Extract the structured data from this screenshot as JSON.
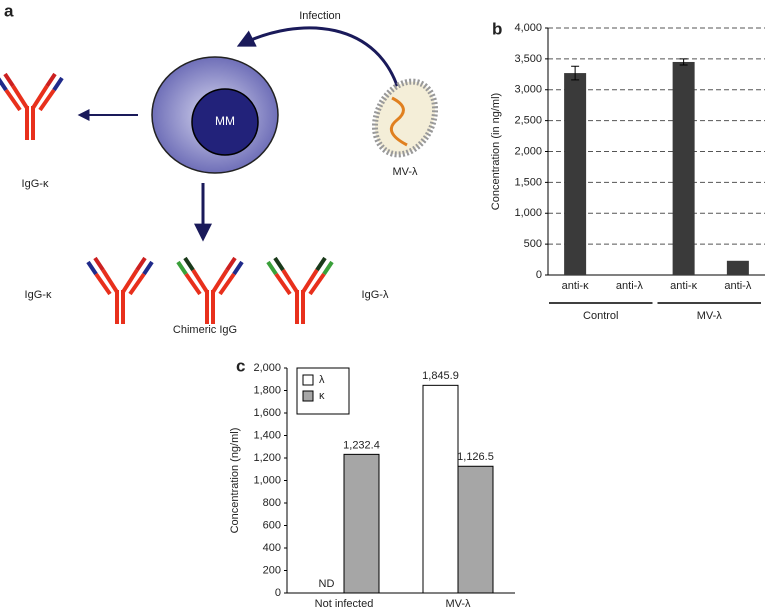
{
  "diagram": {
    "panel": "a",
    "infection": "Infection",
    "cell": "MM",
    "virus": "MV-λ",
    "product": "IgG-κ",
    "outcomes": [
      "IgG-κ",
      "Chimeric IgG",
      "IgG-λ"
    ]
  },
  "chart_data": [
    {
      "type": "bar",
      "panel": "b",
      "y_label": "Concentration (in ng/ml)",
      "categories": [
        "anti-κ",
        "anti-λ",
        "anti-κ",
        "anti-λ"
      ],
      "groups": [
        "Control",
        "MV-λ"
      ],
      "values": [
        3270,
        0,
        3450,
        230
      ],
      "errors": [
        110,
        null,
        50,
        null
      ],
      "color": "#3a3a3a",
      "ylim": [
        0,
        4000
      ],
      "yticks": [
        0,
        500,
        {
          "value": 1000,
          "label": "1,000"
        },
        {
          "value": 1500,
          "label": "1,500"
        },
        {
          "value": 2000,
          "label": "2,000"
        },
        {
          "value": 2500,
          "label": "2,500"
        },
        {
          "value": 3000,
          "label": "3,000"
        },
        {
          "value": 3500,
          "label": "3,500"
        },
        {
          "value": 4000,
          "label": "4,000"
        }
      ],
      "grid": true
    },
    {
      "type": "bar",
      "panel": "c",
      "y_label": "Concentration (ng/ml)",
      "categories": [
        "Not infected",
        "MV-λ"
      ],
      "series": [
        {
          "name": "λ",
          "color": "#ffffff",
          "values": [
            null,
            1845.9
          ],
          "value_labels": [
            "ND",
            "1,845.9"
          ]
        },
        {
          "name": "κ",
          "color": "#a6a6a6",
          "values": [
            1232.4,
            1126.5
          ],
          "value_labels": [
            "1,232.4",
            "1,126.5"
          ]
        }
      ],
      "ylim": [
        0,
        2000
      ],
      "yticks": [
        0,
        200,
        400,
        600,
        800,
        {
          "value": 1000,
          "label": "1,000"
        },
        {
          "value": 1200,
          "label": "1,200"
        },
        {
          "value": 1400,
          "label": "1,400"
        },
        {
          "value": 1600,
          "label": "1,600"
        },
        {
          "value": 1800,
          "label": "1,800"
        },
        {
          "value": 2000,
          "label": "2,000"
        }
      ],
      "legend": "top-left",
      "grid": false
    }
  ]
}
